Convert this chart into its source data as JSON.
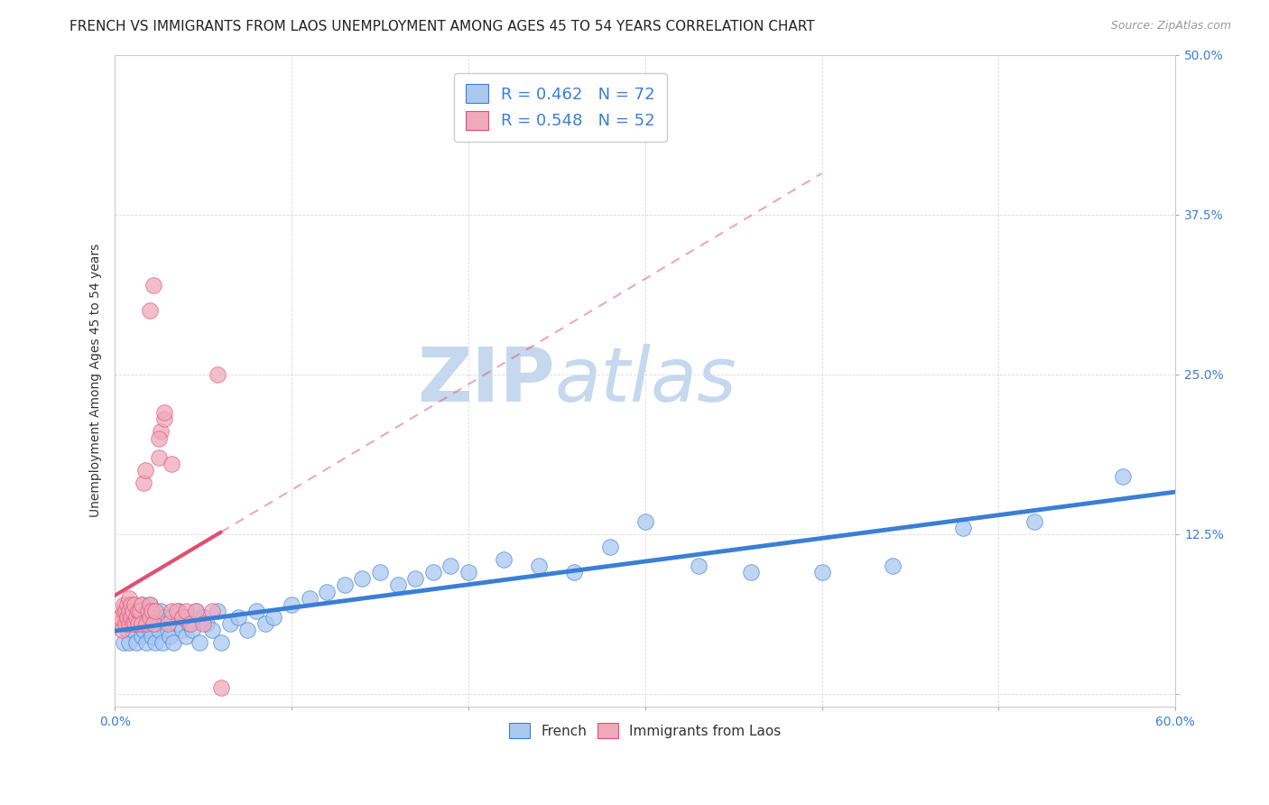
{
  "title": "FRENCH VS IMMIGRANTS FROM LAOS UNEMPLOYMENT AMONG AGES 45 TO 54 YEARS CORRELATION CHART",
  "source": "Source: ZipAtlas.com",
  "ylabel": "Unemployment Among Ages 45 to 54 years",
  "xlim": [
    0.0,
    0.6
  ],
  "ylim": [
    -0.01,
    0.5
  ],
  "xticks": [
    0.0,
    0.1,
    0.2,
    0.3,
    0.4,
    0.5,
    0.6
  ],
  "yticks": [
    0.0,
    0.125,
    0.25,
    0.375,
    0.5
  ],
  "xticklabels": [
    "0.0%",
    "",
    "",
    "",
    "",
    "",
    "60.0%"
  ],
  "yticklabels": [
    "",
    "12.5%",
    "25.0%",
    "37.5%",
    "50.0%"
  ],
  "french_color": "#aac8f0",
  "laos_color": "#f0a8bc",
  "french_line_color": "#3a7fd5",
  "laos_line_color": "#e0506e",
  "legend_text_color": "#3a7fd5",
  "watermark_zip": "ZIP",
  "watermark_atlas": "atlas",
  "watermark_color": "#c5d8ee",
  "watermark_fontsize": 60,
  "legend": {
    "french_R": "0.462",
    "french_N": "72",
    "laos_R": "0.548",
    "laos_N": "52"
  },
  "french_scatter_x": [
    0.005,
    0.007,
    0.008,
    0.009,
    0.01,
    0.01,
    0.012,
    0.013,
    0.014,
    0.015,
    0.015,
    0.016,
    0.017,
    0.018,
    0.019,
    0.02,
    0.02,
    0.021,
    0.022,
    0.023,
    0.024,
    0.025,
    0.026,
    0.027,
    0.028,
    0.03,
    0.031,
    0.032,
    0.033,
    0.035,
    0.036,
    0.038,
    0.04,
    0.04,
    0.042,
    0.044,
    0.046,
    0.048,
    0.05,
    0.052,
    0.055,
    0.058,
    0.06,
    0.065,
    0.07,
    0.075,
    0.08,
    0.085,
    0.09,
    0.1,
    0.11,
    0.12,
    0.13,
    0.14,
    0.15,
    0.16,
    0.17,
    0.18,
    0.19,
    0.2,
    0.22,
    0.24,
    0.26,
    0.28,
    0.3,
    0.33,
    0.36,
    0.4,
    0.44,
    0.48,
    0.52,
    0.57
  ],
  "french_scatter_y": [
    0.04,
    0.05,
    0.04,
    0.06,
    0.05,
    0.065,
    0.04,
    0.055,
    0.06,
    0.045,
    0.07,
    0.05,
    0.06,
    0.04,
    0.055,
    0.05,
    0.07,
    0.045,
    0.06,
    0.04,
    0.055,
    0.05,
    0.065,
    0.04,
    0.06,
    0.05,
    0.045,
    0.06,
    0.04,
    0.055,
    0.065,
    0.05,
    0.045,
    0.06,
    0.055,
    0.05,
    0.065,
    0.04,
    0.06,
    0.055,
    0.05,
    0.065,
    0.04,
    0.055,
    0.06,
    0.05,
    0.065,
    0.055,
    0.06,
    0.07,
    0.075,
    0.08,
    0.085,
    0.09,
    0.095,
    0.085,
    0.09,
    0.095,
    0.1,
    0.095,
    0.105,
    0.1,
    0.095,
    0.115,
    0.135,
    0.1,
    0.095,
    0.095,
    0.1,
    0.13,
    0.135,
    0.17
  ],
  "laos_scatter_x": [
    0.002,
    0.003,
    0.004,
    0.005,
    0.005,
    0.006,
    0.006,
    0.007,
    0.007,
    0.008,
    0.008,
    0.008,
    0.009,
    0.009,
    0.01,
    0.01,
    0.011,
    0.011,
    0.012,
    0.013,
    0.013,
    0.014,
    0.015,
    0.015,
    0.016,
    0.017,
    0.018,
    0.019,
    0.02,
    0.02,
    0.021,
    0.022,
    0.023,
    0.025,
    0.026,
    0.028,
    0.03,
    0.032,
    0.035,
    0.038,
    0.04,
    0.043,
    0.046,
    0.05,
    0.055,
    0.058,
    0.02,
    0.022,
    0.025,
    0.028,
    0.032,
    0.06
  ],
  "laos_scatter_y": [
    0.055,
    0.06,
    0.05,
    0.065,
    0.07,
    0.055,
    0.065,
    0.06,
    0.07,
    0.055,
    0.065,
    0.075,
    0.06,
    0.07,
    0.055,
    0.065,
    0.07,
    0.055,
    0.06,
    0.065,
    0.055,
    0.065,
    0.07,
    0.055,
    0.165,
    0.175,
    0.055,
    0.065,
    0.07,
    0.06,
    0.065,
    0.055,
    0.065,
    0.185,
    0.205,
    0.215,
    0.055,
    0.065,
    0.065,
    0.06,
    0.065,
    0.055,
    0.065,
    0.055,
    0.065,
    0.25,
    0.3,
    0.32,
    0.2,
    0.22,
    0.18,
    0.005
  ],
  "background_color": "#ffffff",
  "grid_color": "#cccccc",
  "title_fontsize": 11,
  "axis_label_fontsize": 10,
  "tick_fontsize": 10,
  "legend_fontsize": 13
}
